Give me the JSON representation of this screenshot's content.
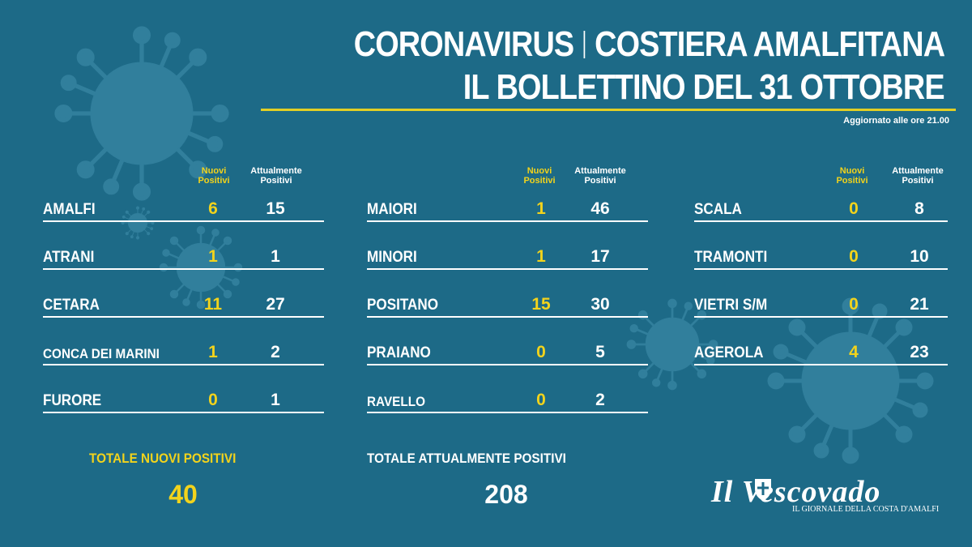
{
  "title": {
    "part1": "CORONAVIRUS",
    "part2": "COSTIERA AMALFITANA",
    "line2": "IL BOLLETTINO DEL 31 OTTOBRE"
  },
  "updated": "Aggiornato alle ore 21.00",
  "headers": {
    "nuovi": "Nuovi Positivi",
    "attuali": "Attualmente Positivi"
  },
  "columns": [
    {
      "rows": [
        {
          "name": "AMALFI",
          "nuovi": "6",
          "attuali": "15"
        },
        {
          "name": "ATRANI",
          "nuovi": "1",
          "attuali": "1"
        },
        {
          "name": "CETARA",
          "nuovi": "11",
          "attuali": "27"
        },
        {
          "name": "CONCA DEI MARINI",
          "nuovi": "1",
          "attuali": "2"
        },
        {
          "name": "FURORE",
          "nuovi": "0",
          "attuali": "1"
        }
      ]
    },
    {
      "rows": [
        {
          "name": "MAIORI",
          "nuovi": "1",
          "attuali": "46"
        },
        {
          "name": "MINORI",
          "nuovi": "1",
          "attuali": "17"
        },
        {
          "name": "POSITANO",
          "nuovi": "15",
          "attuali": "30"
        },
        {
          "name": "PRAIANO",
          "nuovi": "0",
          "attuali": "5"
        },
        {
          "name": "RAVELLO",
          "nuovi": "0",
          "attuali": "2"
        }
      ]
    },
    {
      "rows": [
        {
          "name": "SCALA",
          "nuovi": "0",
          "attuali": "8"
        },
        {
          "name": "TRAMONTI",
          "nuovi": "0",
          "attuali": "10"
        },
        {
          "name": "VIETRI S/M",
          "nuovi": "0",
          "attuali": "21"
        },
        {
          "name": "AGEROLA",
          "nuovi": "4",
          "attuali": "23"
        }
      ]
    }
  ],
  "totals": {
    "nuovi_label": "TOTALE NUOVI POSITIVI",
    "nuovi_value": "40",
    "attuali_label": "TOTALE ATTUALMENTE POSITIVI",
    "attuali_value": "208"
  },
  "logo": {
    "name": "Il Vescovado",
    "tagline": "IL GIORNALE DELLA COSTA D'AMALFI"
  },
  "colors": {
    "background": "#1d6a87",
    "accent": "#f2d31c",
    "virus": "#3b8aa5"
  }
}
